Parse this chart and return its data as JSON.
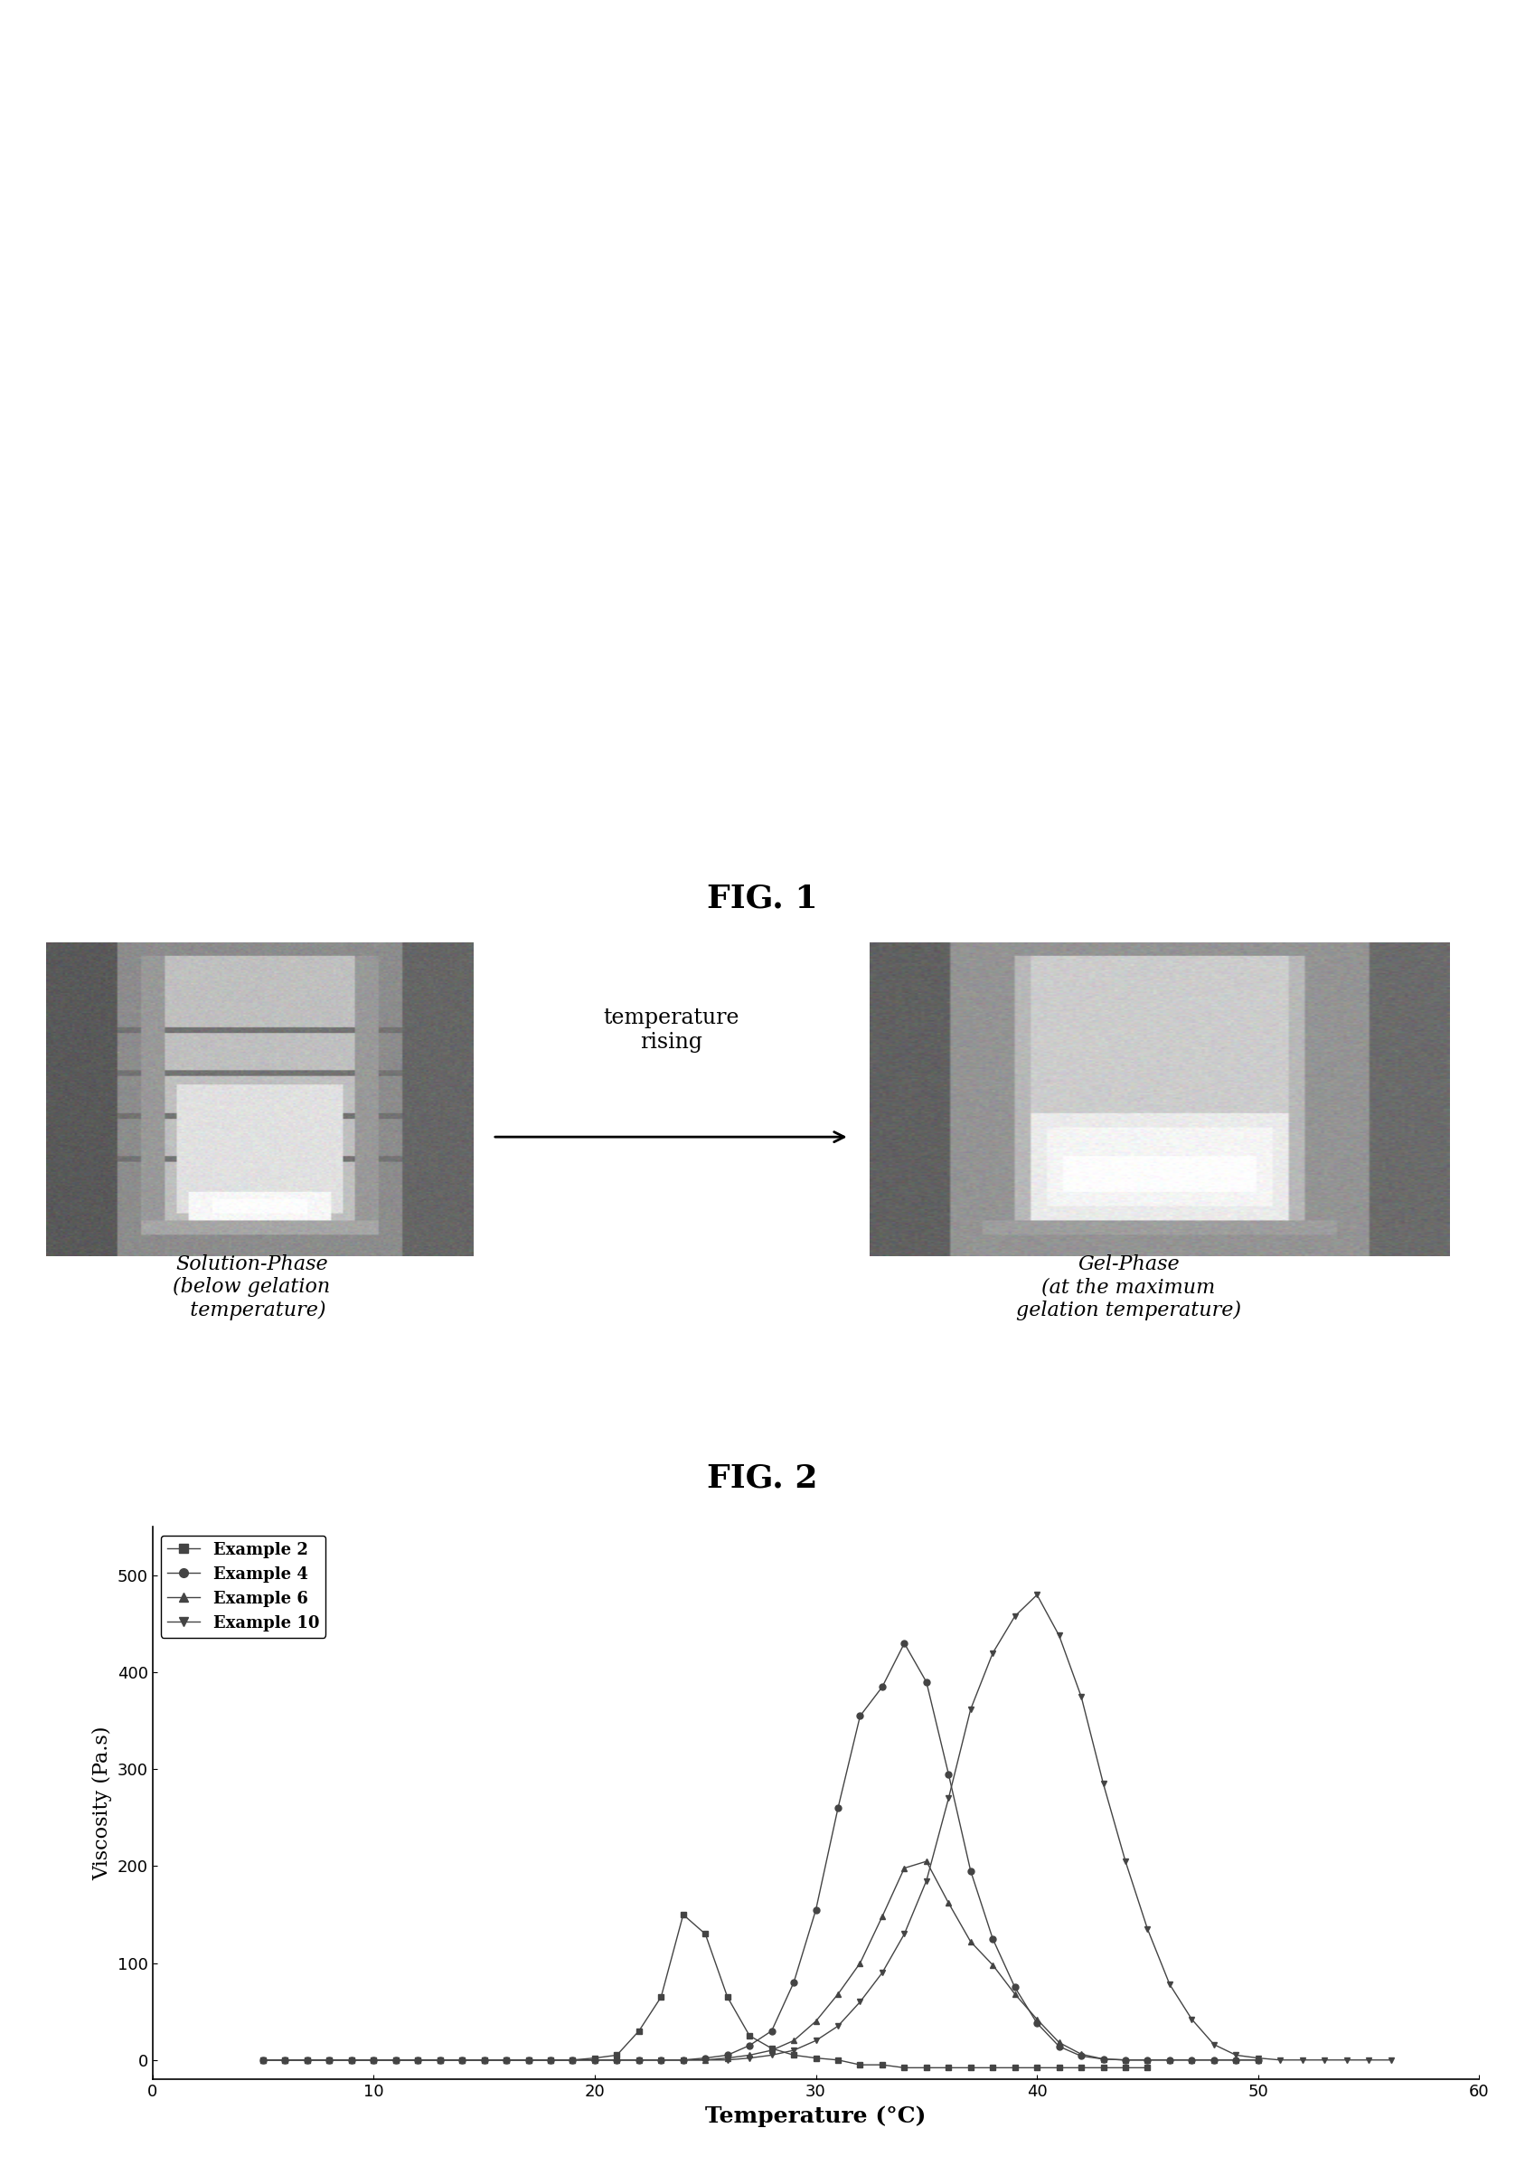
{
  "fig1_title": "FIG. 1",
  "fig2_title": "FIG. 2",
  "fig1_left_label": "Solution-Phase\n(below gelation\n  temperature)",
  "fig1_right_label": "Gel-Phase\n(at the maximum\ngelation temperature)",
  "fig1_arrow_text": "temperature\nrising",
  "fig2_xlabel": "Temperature (°C)",
  "fig2_ylabel": "Viscosity (Pa.s)",
  "fig2_xlim": [
    0,
    60
  ],
  "fig2_ylim": [
    -20,
    550
  ],
  "fig2_xticks": [
    0,
    10,
    20,
    30,
    40,
    50,
    60
  ],
  "fig2_yticks": [
    0,
    100,
    200,
    300,
    400,
    500
  ],
  "series": [
    {
      "label": "Example 2",
      "marker": "s",
      "color": "#444444",
      "temperatures": [
        5,
        6,
        7,
        8,
        9,
        10,
        11,
        12,
        13,
        14,
        15,
        16,
        17,
        18,
        19,
        20,
        21,
        22,
        23,
        24,
        25,
        26,
        27,
        28,
        29,
        30,
        31,
        32,
        33,
        34,
        35,
        36,
        37,
        38,
        39,
        40,
        41,
        42,
        43,
        44,
        45
      ],
      "viscosities": [
        0,
        0,
        0,
        0,
        0,
        0,
        0,
        0,
        0,
        0,
        0,
        0,
        0,
        0,
        0,
        2,
        5,
        30,
        65,
        150,
        130,
        65,
        25,
        12,
        5,
        2,
        0,
        -5,
        -5,
        -8,
        -8,
        -8,
        -8,
        -8,
        -8,
        -8,
        -8,
        -8,
        -8,
        -8,
        -8
      ]
    },
    {
      "label": "Example 4",
      "marker": "o",
      "color": "#444444",
      "temperatures": [
        5,
        6,
        7,
        8,
        9,
        10,
        11,
        12,
        13,
        14,
        15,
        16,
        17,
        18,
        19,
        20,
        21,
        22,
        23,
        24,
        25,
        26,
        27,
        28,
        29,
        30,
        31,
        32,
        33,
        34,
        35,
        36,
        37,
        38,
        39,
        40,
        41,
        42,
        43,
        44,
        45,
        46,
        47,
        48,
        49,
        50
      ],
      "viscosities": [
        0,
        0,
        0,
        0,
        0,
        0,
        0,
        0,
        0,
        0,
        0,
        0,
        0,
        0,
        0,
        0,
        0,
        0,
        0,
        0,
        2,
        5,
        15,
        30,
        80,
        155,
        260,
        355,
        385,
        430,
        390,
        295,
        195,
        125,
        75,
        38,
        14,
        4,
        1,
        0,
        0,
        0,
        0,
        0,
        0,
        0
      ]
    },
    {
      "label": "Example 6",
      "marker": "^",
      "color": "#444444",
      "temperatures": [
        5,
        6,
        7,
        8,
        9,
        10,
        11,
        12,
        13,
        14,
        15,
        16,
        17,
        18,
        19,
        20,
        21,
        22,
        23,
        24,
        25,
        26,
        27,
        28,
        29,
        30,
        31,
        32,
        33,
        34,
        35,
        36,
        37,
        38,
        39,
        40,
        41,
        42,
        43,
        44,
        45,
        46,
        47,
        48,
        49,
        50
      ],
      "viscosities": [
        0,
        0,
        0,
        0,
        0,
        0,
        0,
        0,
        0,
        0,
        0,
        0,
        0,
        0,
        0,
        0,
        0,
        0,
        0,
        0,
        0,
        2,
        5,
        10,
        20,
        40,
        68,
        100,
        148,
        198,
        205,
        162,
        122,
        98,
        68,
        42,
        18,
        6,
        1,
        0,
        0,
        0,
        0,
        0,
        0,
        0
      ]
    },
    {
      "label": "Example 10",
      "marker": "v",
      "color": "#444444",
      "temperatures": [
        5,
        6,
        7,
        8,
        9,
        10,
        11,
        12,
        13,
        14,
        15,
        16,
        17,
        18,
        19,
        20,
        21,
        22,
        23,
        24,
        25,
        26,
        27,
        28,
        29,
        30,
        31,
        32,
        33,
        34,
        35,
        36,
        37,
        38,
        39,
        40,
        41,
        42,
        43,
        44,
        45,
        46,
        47,
        48,
        49,
        50,
        51,
        52,
        53,
        54,
        55,
        56
      ],
      "viscosities": [
        0,
        0,
        0,
        0,
        0,
        0,
        0,
        0,
        0,
        0,
        0,
        0,
        0,
        0,
        0,
        0,
        0,
        0,
        0,
        0,
        0,
        0,
        2,
        5,
        10,
        20,
        35,
        60,
        90,
        130,
        185,
        270,
        362,
        420,
        458,
        480,
        438,
        375,
        285,
        205,
        135,
        78,
        42,
        16,
        5,
        2,
        0,
        0,
        0,
        0,
        0,
        0
      ]
    }
  ]
}
